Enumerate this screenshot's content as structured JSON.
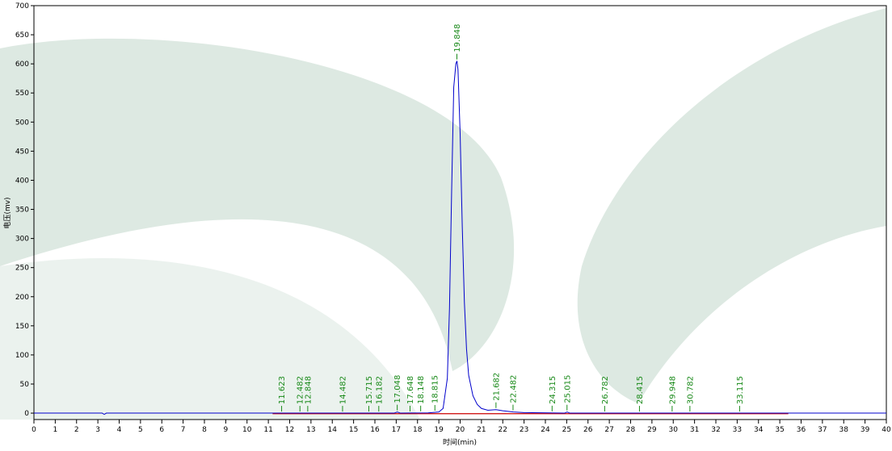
{
  "chart_data": {
    "type": "line",
    "x_label": "时间(min)",
    "y_label": "电压(mv)",
    "xlim": [
      0,
      40
    ],
    "xticks": [
      0,
      1,
      2,
      3,
      4,
      5,
      6,
      7,
      8,
      9,
      10,
      11,
      12,
      13,
      14,
      15,
      16,
      17,
      18,
      19,
      20,
      21,
      22,
      23,
      24,
      25,
      26,
      27,
      28,
      29,
      30,
      31,
      32,
      33,
      34,
      35,
      36,
      37,
      38,
      39,
      40
    ],
    "ylim": [
      -11,
      700
    ],
    "yticks": [
      0,
      50,
      100,
      150,
      200,
      250,
      300,
      350,
      400,
      450,
      500,
      550,
      600,
      650,
      700
    ],
    "series": [
      {
        "color": "#0000cc",
        "x": [
          0,
          3.2,
          3.3,
          3.4,
          11,
          16.9,
          17.05,
          17.2,
          18.5,
          19.0,
          19.2,
          19.4,
          19.5,
          19.6,
          19.7,
          19.8,
          19.85,
          19.9,
          20.0,
          20.1,
          20.2,
          20.3,
          20.4,
          20.6,
          20.8,
          21.0,
          21.3,
          21.68,
          22.0,
          22.5,
          23,
          24.9,
          25.02,
          25.15,
          26,
          40
        ],
        "values": [
          0,
          0,
          -2,
          0,
          0,
          0,
          2,
          0,
          0.5,
          2,
          8,
          60,
          180,
          380,
          560,
          600,
          605,
          590,
          480,
          320,
          190,
          110,
          65,
          30,
          15,
          8,
          5,
          6,
          4,
          2,
          1,
          0,
          2,
          0,
          0,
          0
        ]
      }
    ],
    "baseline": {
      "color": "#cc0000",
      "x": [
        11.2,
        35.4
      ],
      "values": [
        -1,
        -1
      ]
    },
    "peak_color": "#1a8a1a",
    "peaks": [
      11.623,
      12.482,
      12.848,
      14.482,
      15.715,
      16.182,
      17.048,
      17.648,
      18.148,
      18.815,
      19.848,
      21.682,
      22.482,
      24.315,
      25.015,
      26.782,
      28.415,
      29.948,
      30.782,
      33.115
    ]
  }
}
